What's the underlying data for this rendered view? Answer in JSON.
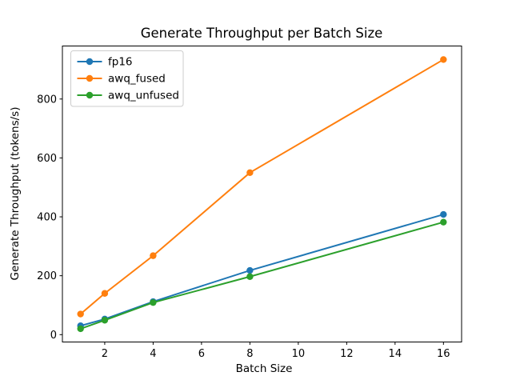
{
  "figure": {
    "background": "#ffffff",
    "frame_color": "#000000",
    "legend_border_color": "#cccccc"
  },
  "chart_data": {
    "type": "line",
    "title": "Generate Throughput per Batch Size",
    "xlabel": "Batch Size",
    "ylabel": "Generate Throughput (tokens/s)",
    "x": [
      1,
      2,
      4,
      8,
      16
    ],
    "series": [
      {
        "name": "fp16",
        "color": "#1f77b4",
        "values": [
          30,
          53,
          112,
          218,
          408
        ]
      },
      {
        "name": "awq_fused",
        "color": "#ff7f0e",
        "values": [
          70,
          140,
          268,
          550,
          934
        ]
      },
      {
        "name": "awq_unfused",
        "color": "#2ca02c",
        "values": [
          20,
          49,
          109,
          197,
          382
        ]
      }
    ],
    "xticks": [
      2,
      4,
      6,
      8,
      10,
      12,
      14,
      16
    ],
    "yticks": [
      0,
      200,
      400,
      600,
      800
    ],
    "xlim": [
      0.25,
      16.75
    ],
    "ylim": [
      -25,
      980
    ],
    "grid": false,
    "legend_position": "upper left",
    "marker": "o"
  }
}
